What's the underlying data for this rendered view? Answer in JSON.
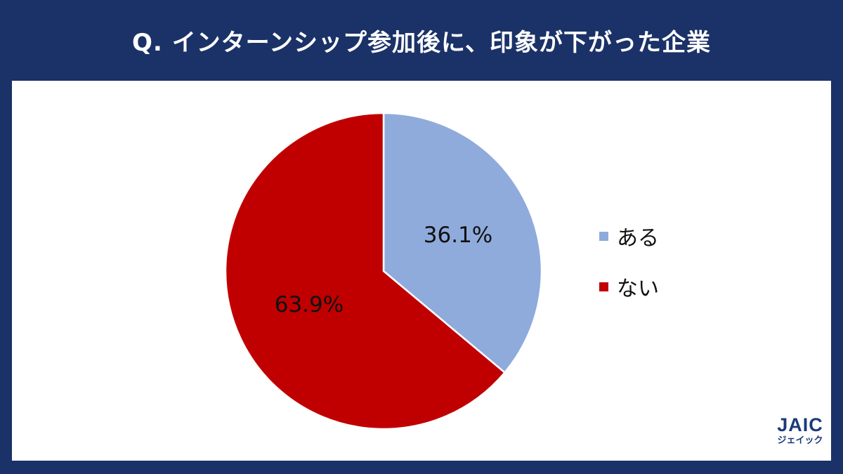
{
  "header": {
    "title": "Q. インターンシップ参加後に、印象が下がった企業"
  },
  "chart_data": {
    "type": "pie",
    "title": "Q. インターンシップ参加後に、印象が下がった企業",
    "slices": [
      {
        "label": "ある",
        "value": 36.1,
        "display": "36.1%",
        "color": "#8fabdc"
      },
      {
        "label": "ない",
        "value": 63.9,
        "display": "63.9%",
        "color": "#c00000"
      }
    ],
    "legend_position": "right",
    "start": "12 o'clock, clockwise"
  },
  "logo": {
    "mark": "JAIC",
    "sub": "ジェイック"
  }
}
